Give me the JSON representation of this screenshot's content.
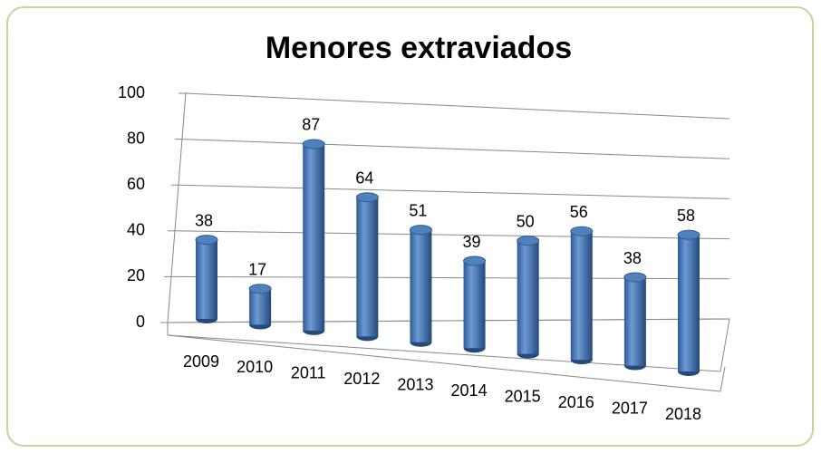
{
  "chart_data": {
    "type": "bar",
    "title": "Menores extraviados",
    "categories": [
      "2009",
      "2010",
      "2011",
      "2012",
      "2013",
      "2014",
      "2015",
      "2016",
      "2017",
      "2018"
    ],
    "values": [
      38,
      17,
      87,
      64,
      51,
      39,
      50,
      56,
      38,
      58
    ],
    "color": "#4f81bd",
    "ylim": [
      0,
      100
    ],
    "yticks": [
      0,
      20,
      40,
      60,
      80,
      100
    ],
    "grid": true
  }
}
